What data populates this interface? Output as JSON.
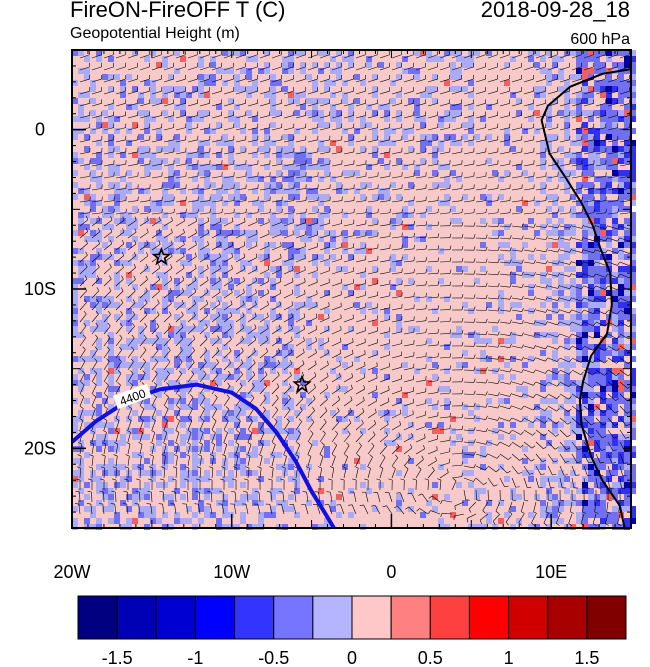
{
  "header": {
    "title": "FireON-FireOFF T (C)",
    "datetime": "2018-09-28_18",
    "subtitle": "Geopotential Height (m)",
    "level": "600 hPa"
  },
  "map": {
    "lon_range": [
      -20,
      15
    ],
    "lat_range": [
      -25,
      5
    ],
    "x_ticks": [
      {
        "lon": -20,
        "label": "20W"
      },
      {
        "lon": -10,
        "label": "10W"
      },
      {
        "lon": 0,
        "label": "0"
      },
      {
        "lon": 10,
        "label": "10E"
      }
    ],
    "y_ticks": [
      {
        "lat": 0,
        "label": "0"
      },
      {
        "lat": -10,
        "label": "10S"
      },
      {
        "lat": -20,
        "label": "20S"
      }
    ],
    "contour": {
      "label": "4400",
      "color": "#1010e0",
      "points": [
        [
          -20,
          -19.6
        ],
        [
          -18.5,
          -18.3
        ],
        [
          -16.5,
          -17.0
        ],
        [
          -14.5,
          -16.3
        ],
        [
          -12.2,
          -16.0
        ],
        [
          -10,
          -16.5
        ],
        [
          -8.5,
          -17.5
        ],
        [
          -7.2,
          -19.0
        ],
        [
          -6.0,
          -20.8
        ],
        [
          -5.0,
          -22.7
        ],
        [
          -4.2,
          -24.0
        ],
        [
          -3.6,
          -25
        ]
      ]
    },
    "stars": [
      {
        "lon": -14.4,
        "lat": -8.0
      },
      {
        "lon": -5.6,
        "lat": -16.0
      }
    ],
    "coastline": [
      [
        15,
        3.8
      ],
      [
        13.2,
        3.5
      ],
      [
        11.2,
        2.7
      ],
      [
        9.8,
        1.5
      ],
      [
        9.4,
        0.6
      ],
      [
        9.9,
        -1.5
      ],
      [
        10.9,
        -3.0
      ],
      [
        11.9,
        -4.6
      ],
      [
        12.6,
        -6.0
      ],
      [
        13.1,
        -7.5
      ],
      [
        13.7,
        -9.0
      ],
      [
        13.8,
        -11.0
      ],
      [
        13.5,
        -12.8
      ],
      [
        12.5,
        -14.2
      ],
      [
        12.0,
        -15.8
      ],
      [
        11.8,
        -17.0
      ],
      [
        11.9,
        -18.5
      ],
      [
        12.5,
        -20.5
      ],
      [
        13.2,
        -22.0
      ],
      [
        14.3,
        -23.6
      ],
      [
        14.6,
        -25
      ]
    ],
    "field_colors": {
      "background": "#f7c9c9",
      "light_blue": "#aaaaf5",
      "mid_blue": "#7070f0",
      "blue": "#3030f0",
      "dark_blue": "#0000a8",
      "red": "#f06060",
      "dark_red": "#c00000"
    }
  },
  "colorbar": {
    "colors": [
      "#000080",
      "#0000b4",
      "#0000d2",
      "#0000ff",
      "#3434ff",
      "#7575ff",
      "#b4b4ff",
      "#ffc8c8",
      "#ff8080",
      "#ff4040",
      "#ff0000",
      "#d00000",
      "#a80000",
      "#800000"
    ],
    "labels": [
      "-1.5",
      "-1",
      "-0.5",
      "0",
      "0.5",
      "1",
      "1.5"
    ]
  }
}
